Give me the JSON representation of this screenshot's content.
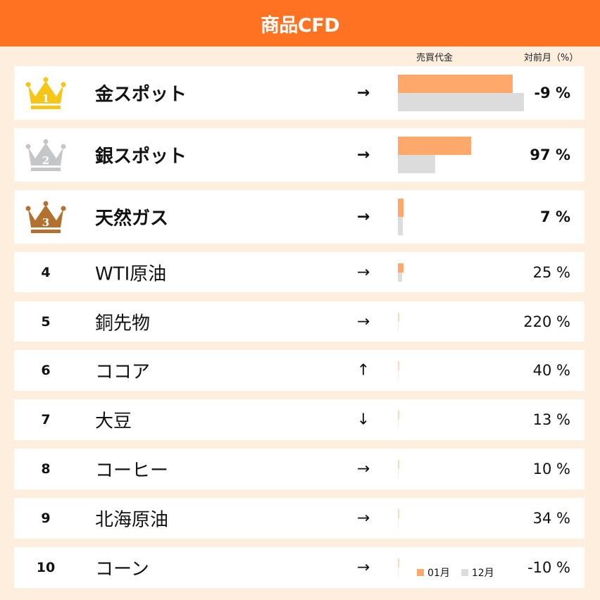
{
  "header": {
    "title": "商品CFD"
  },
  "columns": {
    "volume": "売買代金",
    "change": "対前月（%）"
  },
  "colors": {
    "header": "#ff7221",
    "current_bar": "#ffa86c",
    "previous_bar": "#dcdcdc",
    "gold": "#f5c518",
    "silver": "#c4c6c8",
    "bronze": "#b3712f",
    "background": "#fdeede"
  },
  "legend": {
    "current": "01月",
    "previous": "12月"
  },
  "rows": [
    {
      "rank": "1",
      "name": "金スポット",
      "arrow": "→",
      "change": "-9 %",
      "cur": 163,
      "prev": 179
    },
    {
      "rank": "2",
      "name": "銀スポット",
      "arrow": "→",
      "change": "97 %",
      "cur": 104,
      "prev": 53
    },
    {
      "rank": "3",
      "name": "天然ガス",
      "arrow": "→",
      "change": "7 %",
      "cur": 8,
      "prev": 7
    },
    {
      "rank": "4",
      "name": "WTI原油",
      "arrow": "→",
      "change": "25 %",
      "cur": 8,
      "prev": 6
    },
    {
      "rank": "5",
      "name": "銅先物",
      "arrow": "→",
      "change": "220 %",
      "cur": 1.5,
      "prev": 1
    },
    {
      "rank": "6",
      "name": "ココア",
      "arrow": "↑",
      "change": "40 %",
      "cur": 1.5,
      "prev": 1
    },
    {
      "rank": "7",
      "name": "大豆",
      "arrow": "↓",
      "change": "13 %",
      "cur": 1.5,
      "prev": 1
    },
    {
      "rank": "8",
      "name": "コーヒー",
      "arrow": "→",
      "change": "10 %",
      "cur": 1.5,
      "prev": 1
    },
    {
      "rank": "9",
      "name": "北海原油",
      "arrow": "→",
      "change": "34 %",
      "cur": 1.5,
      "prev": 1
    },
    {
      "rank": "10",
      "name": "コーン",
      "arrow": "→",
      "change": "-10 %",
      "cur": 1.5,
      "prev": 1
    }
  ],
  "chart_data": {
    "type": "bar",
    "orientation": "horizontal",
    "title": "商品CFD",
    "categories": [
      "金スポット",
      "銀スポット",
      "天然ガス",
      "WTI原油",
      "銅先物",
      "ココア",
      "大豆",
      "コーヒー",
      "北海原油",
      "コーン"
    ],
    "series": [
      {
        "name": "01月",
        "color": "#ffa86c",
        "values": [
          163,
          104,
          8,
          8,
          1.5,
          1.5,
          1.5,
          1.5,
          1.5,
          1.5
        ]
      },
      {
        "name": "12月",
        "color": "#dcdcdc",
        "values": [
          179,
          53,
          7,
          6,
          1,
          1,
          1,
          1,
          1,
          1
        ]
      }
    ],
    "value_unit": "relative bar length (px, unlabeled)",
    "change_pct": [
      -9,
      97,
      7,
      25,
      220,
      40,
      13,
      10,
      34,
      -10
    ],
    "trend": [
      "→",
      "→",
      "→",
      "→",
      "→",
      "↑",
      "↓",
      "→",
      "→",
      "→"
    ],
    "xlabel": "売買代金",
    "extra_column": "対前月（%）",
    "legend_position": "bottom-right",
    "grid": false
  }
}
